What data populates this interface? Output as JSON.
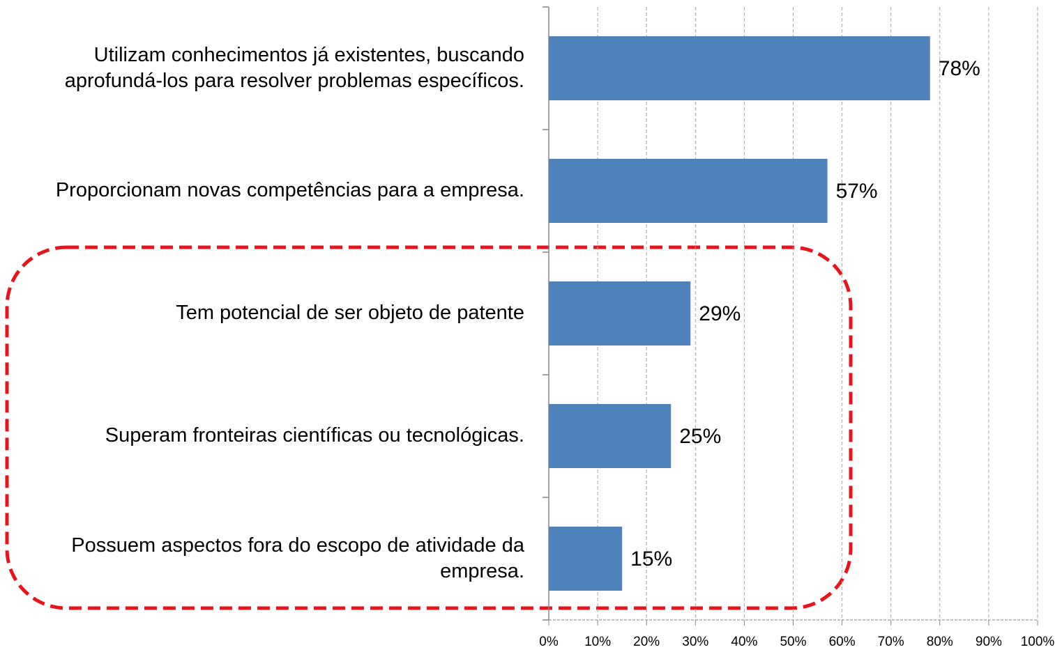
{
  "chart_data": {
    "type": "bar",
    "orientation": "horizontal",
    "categories": [
      "Utilizam conhecimentos já existentes, buscando aprofundá-los para resolver problemas específicos.",
      "Proporcionam novas competências para a empresa.",
      "Tem potencial de ser objeto de patente",
      "Superam fronteiras científicas ou tecnológicas.",
      "Possuem aspectos fora do escopo de atividade da empresa."
    ],
    "values": [
      78,
      57,
      29,
      25,
      15
    ],
    "value_labels": [
      "78%",
      "57%",
      "29%",
      "25%",
      "15%"
    ],
    "color": "#4f81bd",
    "xlim": [
      0,
      100
    ],
    "xticks": [
      {
        "value": 0,
        "label": "0%"
      },
      {
        "value": 10,
        "label": "10%"
      },
      {
        "value": 20,
        "label": "20%"
      },
      {
        "value": 30,
        "label": "30%"
      },
      {
        "value": 40,
        "label": "40%"
      },
      {
        "value": 50,
        "label": "50%"
      },
      {
        "value": 60,
        "label": "60%"
      },
      {
        "value": 70,
        "label": "70%"
      },
      {
        "value": 80,
        "label": "80%"
      },
      {
        "value": 90,
        "label": "90%"
      },
      {
        "value": 100,
        "label": "100%"
      }
    ],
    "grid": true
  }
}
